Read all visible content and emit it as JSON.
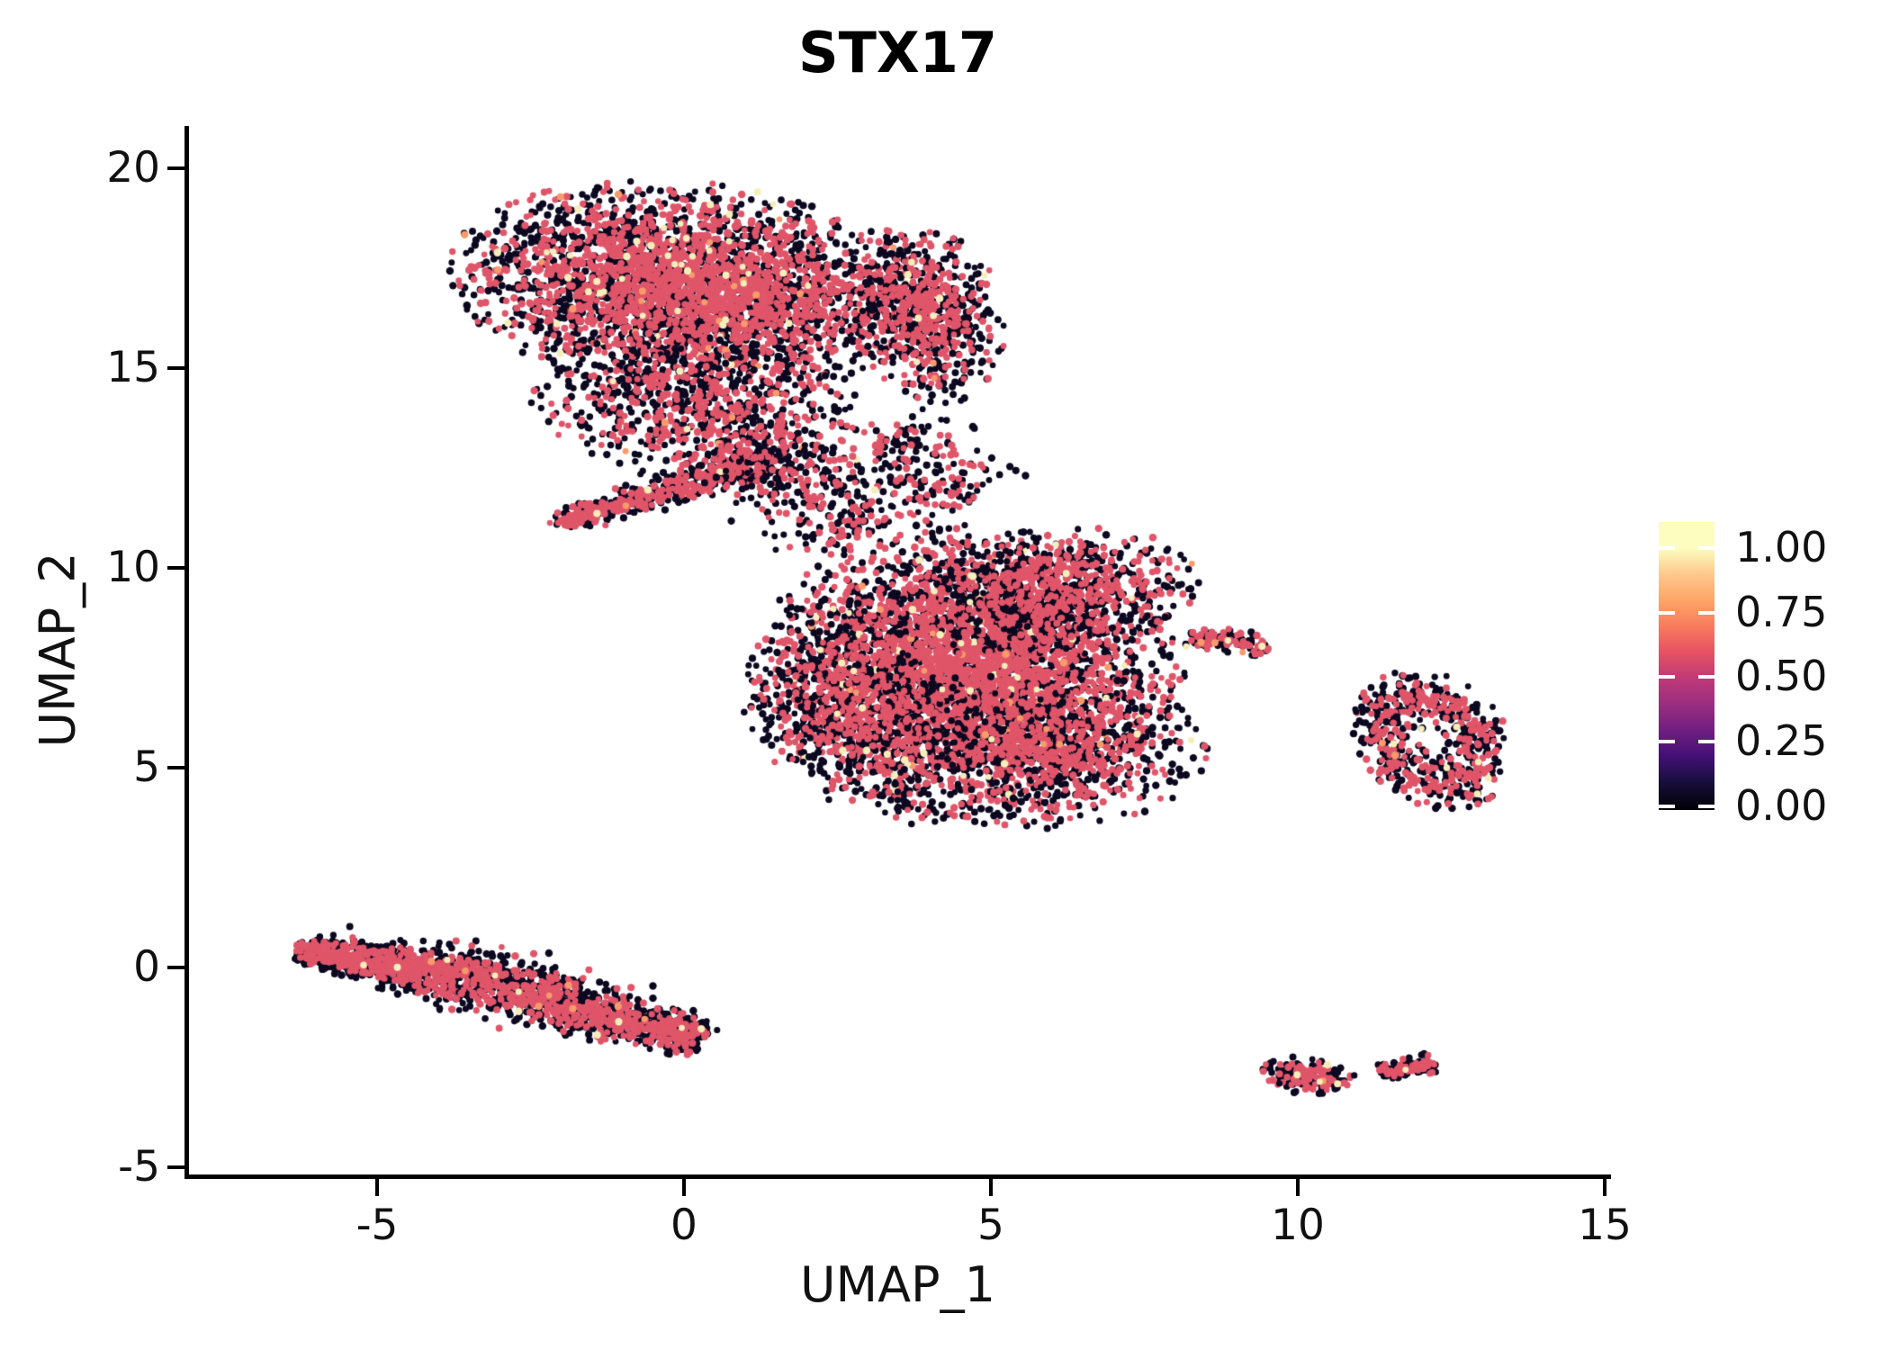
{
  "chart_data": {
    "type": "scatter",
    "title": "STX17",
    "xlabel": "UMAP_1",
    "ylabel": "UMAP_2",
    "x_ticks": [
      -5,
      0,
      5,
      10,
      15
    ],
    "x_tick_labels": [
      "-5",
      "0",
      "5",
      "10",
      "15"
    ],
    "y_ticks": [
      20,
      15,
      10,
      5,
      0,
      -5
    ],
    "y_tick_labels": [
      "20",
      "15",
      "10",
      "5",
      "0",
      "-5"
    ],
    "x_range": [
      -8.1,
      15.1
    ],
    "y_range": [
      -5.2,
      21.1
    ],
    "grid": false,
    "legend_position": "right",
    "point_colors": {
      "black": "#0c0820",
      "pink": "#e05569",
      "cream": "#f6eeba",
      "orange": "#f99a6b"
    },
    "legend": {
      "labels": [
        "1.00",
        "0.75",
        "0.50",
        "0.25",
        "0.00"
      ],
      "colormap": "magma",
      "gradient_stops": [
        {
          "p": 0,
          "c": "#000004"
        },
        {
          "p": 10,
          "c": "#180f3e"
        },
        {
          "p": 19,
          "c": "#451077"
        },
        {
          "p": 28,
          "c": "#721f81"
        },
        {
          "p": 37,
          "c": "#9c2e7f"
        },
        {
          "p": 46,
          "c": "#c13a76"
        },
        {
          "p": 55,
          "c": "#e75263"
        },
        {
          "p": 64,
          "c": "#f97c5d"
        },
        {
          "p": 73,
          "c": "#fda667"
        },
        {
          "p": 82,
          "c": "#fec98d"
        },
        {
          "p": 91,
          "c": "#fcfdbf"
        },
        {
          "p": 100,
          "c": "#fcfdbf"
        }
      ]
    },
    "clusters": [
      {
        "name": "top-left-main",
        "kind": "blob",
        "cx": 0.1,
        "cy": 17.0,
        "sx": 1.75,
        "sy": 1.15,
        "rot": -12,
        "n": 3400,
        "w": {
          "pink": 0.52,
          "cream": 0.012,
          "orange": 0.005
        }
      },
      {
        "name": "top-left-right-lobe",
        "kind": "blob",
        "cx": 4.0,
        "cy": 16.35,
        "sx": 0.55,
        "sy": 1.0,
        "rot": 8,
        "n": 650,
        "w": {
          "pink": 0.5,
          "cream": 0.012,
          "orange": 0.005
        }
      },
      {
        "name": "top-left-bottom-bulge",
        "kind": "blob",
        "cx": 0.3,
        "cy": 13.9,
        "sx": 1.3,
        "sy": 0.8,
        "rot": -20,
        "n": 780,
        "w": {
          "pink": 0.5,
          "cream": 0.01,
          "orange": 0.004
        }
      },
      {
        "name": "beak-wedge",
        "kind": "band",
        "x1": -2.05,
        "y1": 11.15,
        "x2": 1.4,
        "y2": 12.7,
        "sigma": 0.22,
        "taper": [
          0.45,
          1.3
        ],
        "n": 520,
        "w": {
          "pink": 0.46,
          "cream": 0.008,
          "orange": 0.003
        }
      },
      {
        "name": "bridge-sparse-left",
        "kind": "band",
        "x1": 1.2,
        "y1": 12.9,
        "x2": 3.0,
        "y2": 10.8,
        "sigma": 0.55,
        "taper": [
          1,
          1
        ],
        "n": 290,
        "w": {
          "pink": 0.4,
          "cream": 0.006,
          "orange": 0.003
        }
      },
      {
        "name": "bridge-sparse-right",
        "kind": "band",
        "x1": 3.2,
        "y1": 13.4,
        "x2": 4.6,
        "y2": 11.6,
        "sigma": 0.5,
        "taper": [
          1,
          1
        ],
        "n": 200,
        "w": {
          "pink": 0.44,
          "cream": 0.006,
          "orange": 0.003
        }
      },
      {
        "name": "middle-main",
        "kind": "blob",
        "cx": 4.6,
        "cy": 7.4,
        "sx": 1.55,
        "sy": 1.6,
        "rot": -5,
        "n": 3800,
        "w": {
          "pink": 0.56,
          "cream": 0.014,
          "orange": 0.006
        }
      },
      {
        "name": "middle-top-right",
        "kind": "blob",
        "cx": 5.9,
        "cy": 9.3,
        "sx": 1.15,
        "sy": 0.7,
        "rot": 15,
        "n": 800,
        "w": {
          "pink": 0.54,
          "cream": 0.012,
          "orange": 0.005
        }
      },
      {
        "name": "middle-bottom-right",
        "kind": "blob",
        "cx": 6.0,
        "cy": 5.6,
        "sx": 1.15,
        "sy": 0.85,
        "rot": -10,
        "n": 800,
        "w": {
          "pink": 0.5,
          "cream": 0.016,
          "orange": 0.005
        }
      },
      {
        "name": "middle-left",
        "kind": "blob",
        "cx": 2.9,
        "cy": 6.6,
        "sx": 0.85,
        "sy": 1.2,
        "rot": 10,
        "n": 700,
        "w": {
          "pink": 0.5,
          "cream": 0.012,
          "orange": 0.004
        }
      },
      {
        "name": "middle-right-tail",
        "kind": "band",
        "x1": 8.2,
        "y1": 8.3,
        "x2": 9.55,
        "y2": 8.0,
        "sigma": 0.14,
        "taper": [
          1,
          0.7
        ],
        "n": 120,
        "w": {
          "pink": 0.5,
          "cream": 0.03,
          "orange": 0.005
        }
      },
      {
        "name": "middle-bottom-sparse",
        "kind": "band",
        "x1": 3.3,
        "y1": 4.05,
        "x2": 6.2,
        "y2": 3.8,
        "sigma": 0.28,
        "taper": [
          1,
          1
        ],
        "n": 70,
        "w": {
          "pink": 0.38,
          "cream": 0.01,
          "orange": 0.003
        }
      },
      {
        "name": "bottom-left-band-west",
        "kind": "band",
        "x1": -6.25,
        "y1": 0.45,
        "x2": -3.5,
        "y2": -0.25,
        "sigma": 0.3,
        "taper": [
          0.5,
          1.1
        ],
        "n": 950,
        "w": {
          "pink": 0.44,
          "cream": 0.006,
          "orange": 0.003
        }
      },
      {
        "name": "bottom-left-band-east",
        "kind": "band",
        "x1": -3.5,
        "y1": -0.25,
        "x2": 0.25,
        "y2": -1.8,
        "sigma": 0.32,
        "taper": [
          1.1,
          0.75
        ],
        "n": 1150,
        "w": {
          "pink": 0.44,
          "cream": 0.006,
          "orange": 0.003
        }
      },
      {
        "name": "right-ring",
        "kind": "ring",
        "cx": 12.2,
        "cy": 5.7,
        "rx": 0.8,
        "ry": 1.15,
        "rot": 18,
        "sigma": 0.3,
        "n": 600,
        "w": {
          "pink": 0.46,
          "cream": 0.015,
          "orange": 0.005
        }
      },
      {
        "name": "small-south-blob",
        "kind": "blob",
        "cx": 10.15,
        "cy": -2.72,
        "sx": 0.34,
        "sy": 0.2,
        "rot": -15,
        "n": 150,
        "w": {
          "pink": 0.5,
          "cream": 0.012,
          "orange": 0.004
        }
      },
      {
        "name": "small-south-dash",
        "kind": "band",
        "x1": 11.35,
        "y1": -2.6,
        "x2": 12.25,
        "y2": -2.42,
        "sigma": 0.11,
        "taper": [
          1,
          1
        ],
        "n": 120,
        "w": {
          "pink": 0.45,
          "cream": 0.008,
          "orange": 0.003
        }
      }
    ],
    "singles": [
      {
        "x": 6.05,
        "y": 3.55,
        "color": "black"
      },
      {
        "x": 5.15,
        "y": 3.8,
        "color": "black"
      },
      {
        "x": 9.7,
        "y": -2.9,
        "color": "black"
      },
      {
        "x": 10.92,
        "y": -2.7,
        "color": "black"
      },
      {
        "x": 10.95,
        "y": 6.4,
        "color": "black"
      },
      {
        "x": 11.2,
        "y": 6.35,
        "color": "pink"
      },
      {
        "x": 11.45,
        "y": 6.55,
        "color": "black"
      },
      {
        "x": 11.6,
        "y": 6.28,
        "color": "black"
      },
      {
        "x": 11.1,
        "y": 6.12,
        "color": "black"
      },
      {
        "x": 8.6,
        "y": 8.4,
        "color": "pink"
      }
    ]
  }
}
